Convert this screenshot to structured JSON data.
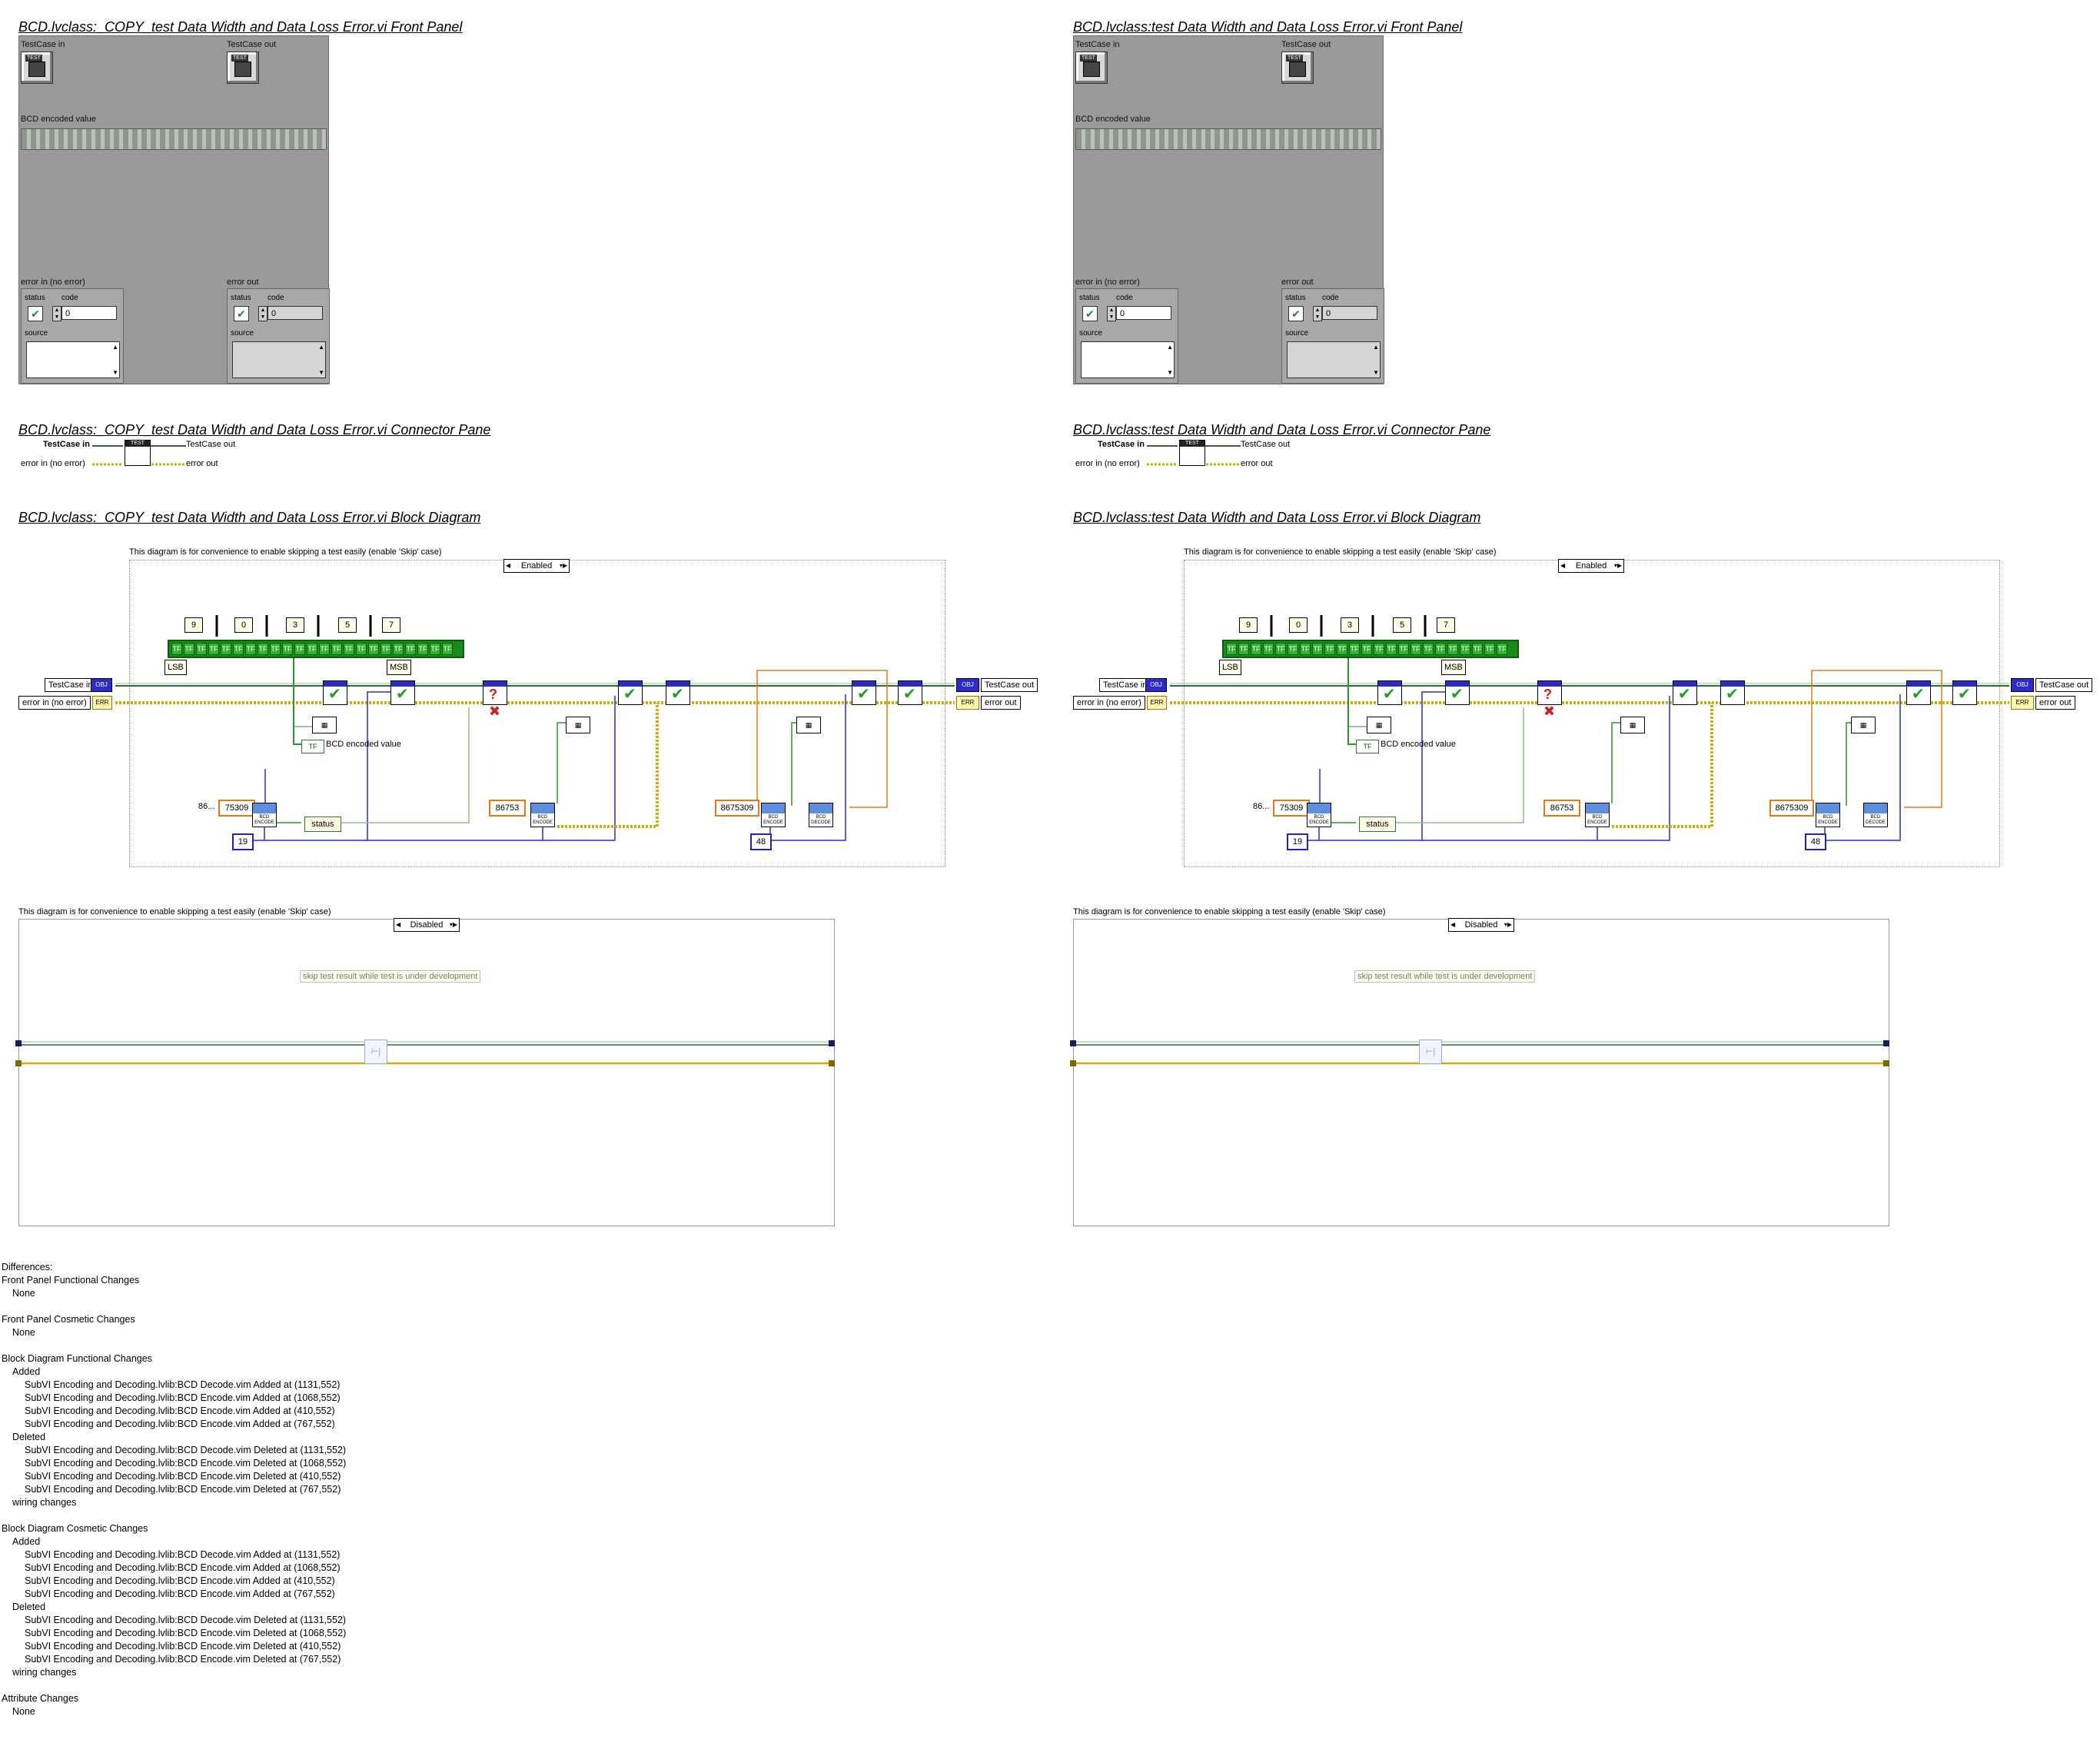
{
  "panels": [
    {
      "front_panel_title": "BCD.lvclass:_COPY_test Data Width and Data Loss Error.vi Front Panel",
      "connector_pane_title": "BCD.lvclass:_COPY_test Data Width and Data Loss Error.vi Connector Pane",
      "block_diagram_title": "BCD.lvclass:_COPY_test Data Width and Data Loss Error.vi Block Diagram"
    },
    {
      "front_panel_title": "BCD.lvclass:test Data Width and Data Loss Error.vi Front Panel",
      "connector_pane_title": "BCD.lvclass:test Data Width and Data Loss Error.vi Connector Pane",
      "block_diagram_title": "BCD.lvclass:test Data Width and Data Loss Error.vi Block Diagram"
    }
  ],
  "front_panel": {
    "testcase_in": "TestCase in",
    "testcase_out": "TestCase out",
    "bcd_encoded_value": "BCD encoded value",
    "error_in": "error in (no error)",
    "error_out": "error out",
    "status": "status",
    "code": "code",
    "source": "source",
    "code_value": "0",
    "icon_tag": "TEST",
    "status_mark": "✔"
  },
  "connector": {
    "testcase_in": "TestCase in",
    "testcase_out": "TestCase out",
    "error_in": "error in (no error)",
    "error_out": "error out",
    "icon_text": "TEST"
  },
  "diagram": {
    "note": "This diagram is for convenience to enable skipping a test easily (enable 'Skip' case)",
    "enabled_case": "Enabled",
    "disabled_case": "Disabled",
    "digits": [
      "9",
      "0",
      "3",
      "5",
      "7"
    ],
    "bit_glyph": "TF",
    "lsb": "LSB",
    "msb": "MSB",
    "testcase_in": "TestCase in",
    "testcase_out": "TestCase out",
    "error_in": "error in (no error)",
    "error_out": "error out",
    "bcd_encoded_value": "BCD encoded value",
    "tf_tag": "TF",
    "status": "status",
    "const_a_label": "86...",
    "const_a": "75309",
    "const_b": "86753",
    "const_c": "8675309",
    "width_a": "19",
    "width_b": "48",
    "bcd_encode": "BCD ENCODE",
    "bcd_decode": "BCD DECODE",
    "obj": "OBJ",
    "err_tag": "ERR",
    "skip_note": "skip test result while test is under development"
  },
  "differences": [
    {
      "text": "Differences:",
      "indent": 0
    },
    {
      "text": "Front Panel Functional Changes",
      "indent": 0
    },
    {
      "text": "None",
      "indent": 1
    },
    {
      "text": "",
      "indent": 0
    },
    {
      "text": "Front Panel Cosmetic Changes",
      "indent": 0
    },
    {
      "text": "None",
      "indent": 1
    },
    {
      "text": "",
      "indent": 0
    },
    {
      "text": "Block Diagram Functional Changes",
      "indent": 0
    },
    {
      "text": "Added",
      "indent": 1
    },
    {
      "text": "SubVI Encoding and Decoding.lvlib:BCD Decode.vim Added at (1131,552)",
      "indent": 2
    },
    {
      "text": "SubVI Encoding and Decoding.lvlib:BCD Encode.vim Added at (1068,552)",
      "indent": 2
    },
    {
      "text": "SubVI Encoding and Decoding.lvlib:BCD Encode.vim Added at (410,552)",
      "indent": 2
    },
    {
      "text": "SubVI Encoding and Decoding.lvlib:BCD Encode.vim Added at (767,552)",
      "indent": 2
    },
    {
      "text": "Deleted",
      "indent": 1
    },
    {
      "text": "SubVI Encoding and Decoding.lvlib:BCD Decode.vim Deleted at (1131,552)",
      "indent": 2
    },
    {
      "text": "SubVI Encoding and Decoding.lvlib:BCD Encode.vim Deleted at (1068,552)",
      "indent": 2
    },
    {
      "text": "SubVI Encoding and Decoding.lvlib:BCD Encode.vim Deleted at (410,552)",
      "indent": 2
    },
    {
      "text": "SubVI Encoding and Decoding.lvlib:BCD Encode.vim Deleted at (767,552)",
      "indent": 2
    },
    {
      "text": "wiring changes",
      "indent": 1
    },
    {
      "text": "",
      "indent": 0
    },
    {
      "text": "Block Diagram Cosmetic Changes",
      "indent": 0
    },
    {
      "text": "Added",
      "indent": 1
    },
    {
      "text": "SubVI Encoding and Decoding.lvlib:BCD Decode.vim Added at (1131,552)",
      "indent": 2
    },
    {
      "text": "SubVI Encoding and Decoding.lvlib:BCD Encode.vim Added at (1068,552)",
      "indent": 2
    },
    {
      "text": "SubVI Encoding and Decoding.lvlib:BCD Encode.vim Added at (410,552)",
      "indent": 2
    },
    {
      "text": "SubVI Encoding and Decoding.lvlib:BCD Encode.vim Added at (767,552)",
      "indent": 2
    },
    {
      "text": "Deleted",
      "indent": 1
    },
    {
      "text": "SubVI Encoding and Decoding.lvlib:BCD Decode.vim Deleted at (1131,552)",
      "indent": 2
    },
    {
      "text": "SubVI Encoding and Decoding.lvlib:BCD Encode.vim Deleted at (1068,552)",
      "indent": 2
    },
    {
      "text": "SubVI Encoding and Decoding.lvlib:BCD Encode.vim Deleted at (410,552)",
      "indent": 2
    },
    {
      "text": "SubVI Encoding and Decoding.lvlib:BCD Encode.vim Deleted at (767,552)",
      "indent": 2
    },
    {
      "text": "wiring changes",
      "indent": 1
    },
    {
      "text": "",
      "indent": 0
    },
    {
      "text": "Attribute Changes",
      "indent": 0
    },
    {
      "text": "None",
      "indent": 1
    }
  ],
  "colors": {
    "class_wire": "#2e6b2e",
    "error_wire": "#c8b400",
    "int_wire": "#2a2ad0",
    "u8_wire": "#e07a1a",
    "bool_wire": "#2a9a2a",
    "panel_bg": "#9a9a9a"
  }
}
